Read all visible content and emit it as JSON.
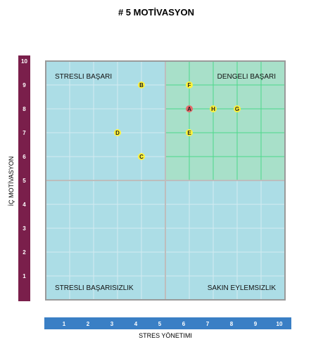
{
  "chart_data": {
    "type": "scatter",
    "title": "# 5 MOTİVASYON",
    "xlabel": "STRES YÖNETIMI",
    "ylabel": "İÇ MOTİVASYON",
    "xlim": [
      0,
      10
    ],
    "ylim": [
      0,
      10
    ],
    "x_ticks": [
      "1",
      "2",
      "3",
      "4",
      "5",
      "6",
      "7",
      "8",
      "9",
      "10"
    ],
    "y_ticks": [
      "1",
      "2",
      "3",
      "4",
      "5",
      "6",
      "7",
      "8",
      "9",
      "10"
    ],
    "quadrants": [
      {
        "label": "STRESLI BAŞARI",
        "position": "top-left"
      },
      {
        "label": "DENGELI BAŞARI",
        "position": "top-right"
      },
      {
        "label": "STRESLI BAŞARISIZLIK",
        "position": "bottom-left"
      },
      {
        "label": "SAKIN EYLEMSIZLIK",
        "position": "bottom-right"
      }
    ],
    "points": [
      {
        "label": "A",
        "x": 6,
        "y": 8,
        "highlight": true
      },
      {
        "label": "B",
        "x": 4,
        "y": 9,
        "highlight": false
      },
      {
        "label": "C",
        "x": 4,
        "y": 6,
        "highlight": false
      },
      {
        "label": "D",
        "x": 3,
        "y": 7,
        "highlight": false
      },
      {
        "label": "E",
        "x": 6,
        "y": 7,
        "highlight": false
      },
      {
        "label": "F",
        "x": 6,
        "y": 9,
        "highlight": false
      },
      {
        "label": "G",
        "x": 8,
        "y": 8,
        "highlight": false
      },
      {
        "label": "H",
        "x": 7,
        "y": 8,
        "highlight": false
      }
    ],
    "grid": true,
    "colors": {
      "plot_bg": "#acdde6",
      "top_right_bg": "#a8e0c9",
      "grid": "#d3ecf1",
      "top_right_grid": "#4cd98a",
      "y_axis_bar": "#7a1f4b",
      "x_axis_bar": "#3a7fc5",
      "point_fill": "#fff33a",
      "point_highlight": "#e46a6a"
    }
  }
}
